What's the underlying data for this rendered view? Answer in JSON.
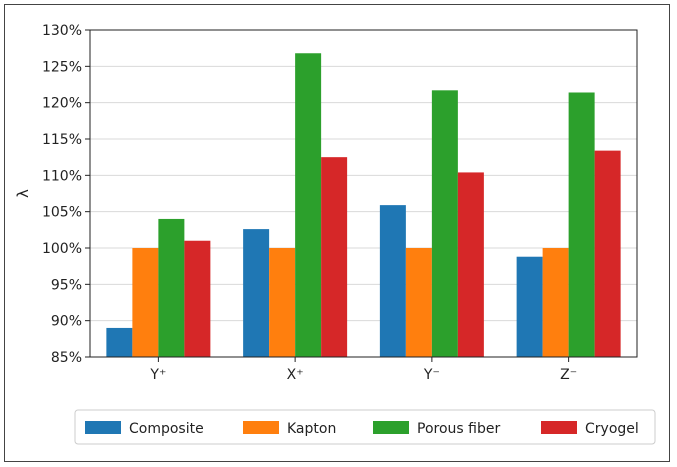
{
  "chart_data": {
    "type": "bar",
    "title": "",
    "xlabel": "",
    "ylabel": "λ",
    "categories": [
      "Y⁺",
      "X⁺",
      "Y⁻",
      "Z⁻"
    ],
    "ylim": [
      85,
      130
    ],
    "yticks": [
      85,
      90,
      95,
      100,
      105,
      110,
      115,
      120,
      125,
      130
    ],
    "ytick_suffix": "%",
    "grid": true,
    "legend_position": "bottom",
    "series": [
      {
        "name": "Composite",
        "color": "#1f77b4",
        "values": [
          89.0,
          102.6,
          105.9,
          98.8
        ]
      },
      {
        "name": "Kapton",
        "color": "#ff7f0e",
        "values": [
          100.0,
          100.0,
          100.0,
          100.0
        ]
      },
      {
        "name": "Porous fiber",
        "color": "#2ca02c",
        "values": [
          104.0,
          126.8,
          121.7,
          121.4
        ]
      },
      {
        "name": "Cryogel",
        "color": "#d62728",
        "values": [
          101.0,
          112.5,
          110.4,
          113.4
        ]
      }
    ]
  }
}
